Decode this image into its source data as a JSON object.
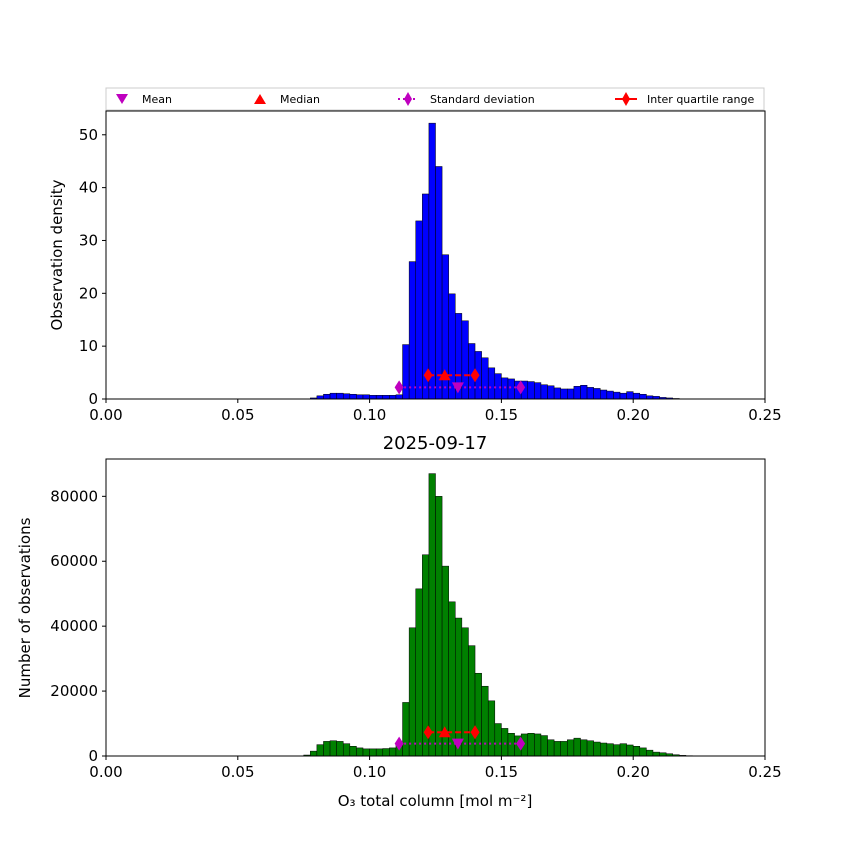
{
  "chart_data": [
    {
      "type": "bar",
      "panel": "top",
      "title": "",
      "xlabel": "",
      "ylabel": "Observation density",
      "xlim": [
        0.0,
        0.25
      ],
      "ylim": [
        0,
        54.5
      ],
      "xticks": [
        "0.00",
        "0.05",
        "0.10",
        "0.15",
        "0.20",
        "0.25"
      ],
      "yticks": [
        "0",
        "10",
        "20",
        "30",
        "40",
        "50"
      ],
      "bar_color": "#0000ff",
      "bin_width": 0.0025,
      "x": [
        0.0775,
        0.08,
        0.0825,
        0.085,
        0.0875,
        0.09,
        0.0925,
        0.095,
        0.0975,
        0.1,
        0.1025,
        0.105,
        0.1075,
        0.11,
        0.1125,
        0.115,
        0.1175,
        0.12,
        0.1225,
        0.125,
        0.1275,
        0.13,
        0.1325,
        0.135,
        0.1375,
        0.14,
        0.1425,
        0.145,
        0.1475,
        0.15,
        0.1525,
        0.155,
        0.1575,
        0.16,
        0.1625,
        0.165,
        0.1675,
        0.17,
        0.1725,
        0.175,
        0.1775,
        0.18,
        0.1825,
        0.185,
        0.1875,
        0.19,
        0.1925,
        0.195,
        0.1975,
        0.2,
        0.2025,
        0.205,
        0.2075,
        0.21,
        0.2125,
        0.215,
        0.2175
      ],
      "values": [
        0.2,
        0.6,
        0.9,
        1.1,
        1.1,
        1.0,
        0.9,
        0.8,
        0.8,
        0.7,
        0.7,
        0.7,
        0.7,
        0.8,
        10.3,
        26.0,
        33.7,
        38.8,
        52.2,
        44.0,
        27.3,
        19.9,
        16.2,
        14.8,
        10.5,
        9.0,
        7.8,
        5.9,
        4.8,
        4.0,
        3.8,
        3.4,
        3.4,
        3.3,
        3.1,
        2.7,
        2.5,
        2.1,
        1.9,
        1.9,
        2.4,
        2.6,
        2.2,
        2.0,
        1.7,
        1.5,
        1.3,
        1.1,
        1.4,
        1.1,
        0.9,
        0.6,
        0.5,
        0.3,
        0.2,
        0.1,
        0.0
      ],
      "markers": {
        "mean": {
          "x": 0.1335,
          "y": 2.2,
          "label": "Mean",
          "color": "#bf00bf"
        },
        "median": {
          "x": 0.1285,
          "y": 4.5,
          "label": "Median",
          "color": "#ff0000"
        },
        "std": {
          "x": [
            0.1112,
            0.1573
          ],
          "y": 2.2,
          "label": "Standard deviation",
          "color": "#bf00bf"
        },
        "iqr": {
          "x": [
            0.1222,
            0.14
          ],
          "y": 4.5,
          "label": "Inter quartile range",
          "color": "#ff0000"
        }
      }
    },
    {
      "type": "bar",
      "panel": "bottom",
      "title": "2025-09-17",
      "xlabel": "O₃ total column [mol m⁻²]",
      "ylabel": "Number of observations",
      "xlim": [
        0.0,
        0.25
      ],
      "ylim": [
        0,
        91500
      ],
      "xticks": [
        "0.00",
        "0.05",
        "0.10",
        "0.15",
        "0.20",
        "0.25"
      ],
      "yticks": [
        "0",
        "20000",
        "40000",
        "60000",
        "80000"
      ],
      "bar_color": "#008000",
      "bin_width": 0.0025,
      "x": [
        0.075,
        0.0775,
        0.08,
        0.0825,
        0.085,
        0.0875,
        0.09,
        0.0925,
        0.095,
        0.0975,
        0.1,
        0.1025,
        0.105,
        0.1075,
        0.11,
        0.1125,
        0.115,
        0.1175,
        0.12,
        0.1225,
        0.125,
        0.1275,
        0.13,
        0.1325,
        0.135,
        0.1375,
        0.14,
        0.1425,
        0.145,
        0.1475,
        0.15,
        0.1525,
        0.155,
        0.1575,
        0.16,
        0.1625,
        0.165,
        0.1675,
        0.17,
        0.1725,
        0.175,
        0.1775,
        0.18,
        0.1825,
        0.185,
        0.1875,
        0.19,
        0.1925,
        0.195,
        0.1975,
        0.2,
        0.2025,
        0.205,
        0.2075,
        0.21,
        0.2125,
        0.215,
        0.2175,
        0.22
      ],
      "values": [
        300,
        1500,
        3500,
        4500,
        4700,
        4500,
        3800,
        3000,
        2500,
        2200,
        2200,
        2200,
        2300,
        2500,
        4000,
        16500,
        39500,
        51500,
        62000,
        87000,
        80000,
        58500,
        47500,
        42500,
        39500,
        34000,
        25500,
        21500,
        17000,
        10000,
        8500,
        7000,
        6200,
        6800,
        7000,
        6800,
        6300,
        5000,
        4500,
        4500,
        5000,
        5500,
        5000,
        4700,
        4300,
        4000,
        3800,
        3500,
        3800,
        3400,
        3000,
        2500,
        1800,
        1200,
        1000,
        700,
        400,
        200,
        100
      ],
      "markers": {
        "mean": {
          "x": 0.1335,
          "y": 3800,
          "label": "Mean",
          "color": "#bf00bf"
        },
        "median": {
          "x": 0.1285,
          "y": 7300,
          "label": "Median",
          "color": "#ff0000"
        },
        "std": {
          "x": [
            0.1112,
            0.1573
          ],
          "y": 3800,
          "label": "Standard deviation",
          "color": "#bf00bf"
        },
        "iqr": {
          "x": [
            0.1222,
            0.14
          ],
          "y": 7300,
          "label": "Inter quartile range",
          "color": "#ff0000"
        }
      }
    }
  ],
  "legend": {
    "placement": "top",
    "items": [
      {
        "label": "Mean",
        "marker": "triangle-down",
        "color": "#bf00bf"
      },
      {
        "label": "Median",
        "marker": "triangle-up",
        "color": "#ff0000"
      },
      {
        "label": "Standard deviation",
        "marker": "diamond-dotted",
        "color": "#bf00bf"
      },
      {
        "label": "Inter quartile range",
        "marker": "diamond-solid",
        "color": "#ff0000"
      }
    ]
  }
}
